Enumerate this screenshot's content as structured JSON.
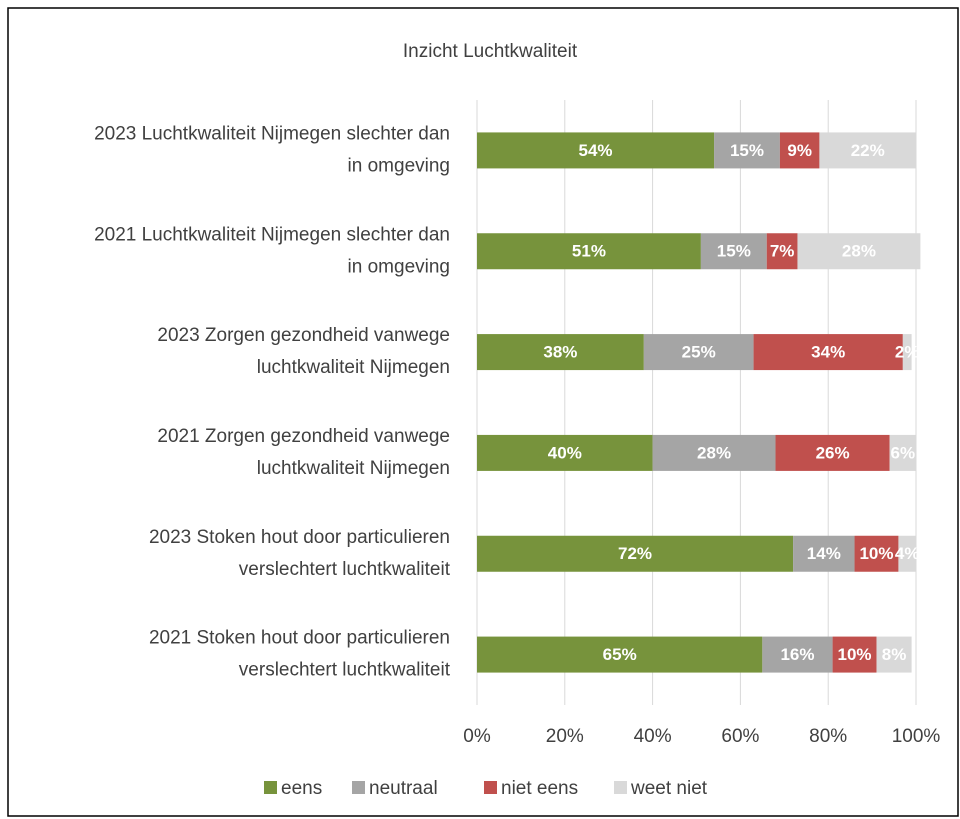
{
  "chart_data": {
    "type": "stacked-barh",
    "title": "Inzicht Luchtkwaliteit",
    "categories": [
      [
        "2023 Luchtkwaliteit Nijmegen slechter dan",
        "in omgeving"
      ],
      [
        "2021 Luchtkwaliteit Nijmegen slechter dan",
        "in omgeving"
      ],
      [
        "2023 Zorgen gezondheid vanwege",
        "luchtkwaliteit Nijmegen"
      ],
      [
        "2021 Zorgen gezondheid vanwege",
        "luchtkwaliteit Nijmegen"
      ],
      [
        "2023 Stoken hout door particulieren",
        "verslechtert luchtkwaliteit"
      ],
      [
        "2021 Stoken hout door particulieren",
        "verslechtert luchtkwaliteit"
      ]
    ],
    "series": [
      {
        "name": "eens",
        "color": "#77933c",
        "values": [
          54,
          51,
          38,
          40,
          72,
          65
        ],
        "value_labels": [
          "54%",
          "51%",
          "38%",
          "40%",
          "72%",
          "65%"
        ]
      },
      {
        "name": "neutraal",
        "color": "#a5a5a5",
        "values": [
          15,
          15,
          25,
          28,
          14,
          16
        ],
        "value_labels": [
          "15%",
          "15%",
          "25%",
          "28%",
          "14%",
          "16%"
        ]
      },
      {
        "name": "niet eens",
        "color": "#c0504d",
        "values": [
          9,
          7,
          34,
          26,
          10,
          10
        ],
        "value_labels": [
          "9%",
          "7%",
          "34%",
          "26%",
          "10%",
          "10%"
        ]
      },
      {
        "name": "weet niet",
        "color": "#d9d9d9",
        "values": [
          22,
          28,
          2,
          6,
          4,
          8
        ],
        "value_labels": [
          "22%",
          "28%",
          "2%",
          "6%",
          "4%",
          "8%"
        ]
      }
    ],
    "xlim": [
      0,
      100
    ],
    "xticks": [
      {
        "value": 0,
        "label": "0%"
      },
      {
        "value": 20,
        "label": "20%"
      },
      {
        "value": 40,
        "label": "40%"
      },
      {
        "value": 60,
        "label": "60%"
      },
      {
        "value": 80,
        "label": "80%"
      },
      {
        "value": 100,
        "label": "100%"
      }
    ],
    "grid": true,
    "legend": "bottom"
  }
}
